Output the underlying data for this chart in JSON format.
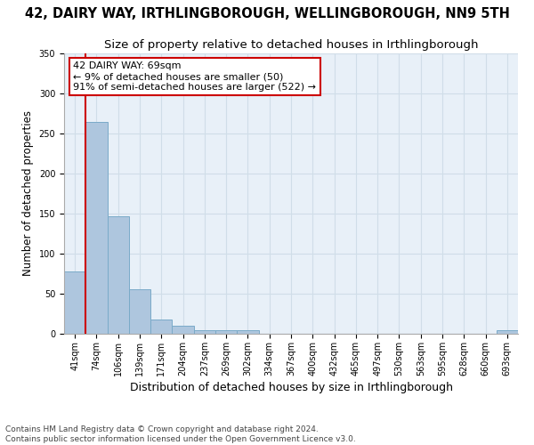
{
  "title": "42, DAIRY WAY, IRTHLINGBOROUGH, WELLINGBOROUGH, NN9 5TH",
  "subtitle": "Size of property relative to detached houses in Irthlingborough",
  "xlabel": "Distribution of detached houses by size in Irthlingborough",
  "ylabel": "Number of detached properties",
  "footer_line1": "Contains HM Land Registry data © Crown copyright and database right 2024.",
  "footer_line2": "Contains public sector information licensed under the Open Government Licence v3.0.",
  "bins": [
    "41sqm",
    "74sqm",
    "106sqm",
    "139sqm",
    "171sqm",
    "204sqm",
    "237sqm",
    "269sqm",
    "302sqm",
    "334sqm",
    "367sqm",
    "400sqm",
    "432sqm",
    "465sqm",
    "497sqm",
    "530sqm",
    "563sqm",
    "595sqm",
    "628sqm",
    "660sqm",
    "693sqm"
  ],
  "values": [
    78,
    265,
    147,
    56,
    18,
    10,
    4,
    4,
    4,
    0,
    0,
    0,
    0,
    0,
    0,
    0,
    0,
    0,
    0,
    0,
    4
  ],
  "bar_color": "#aec6de",
  "bar_edge_color": "#7aaac8",
  "grid_color": "#d0dde8",
  "background_color": "#e8f0f8",
  "annotation_text": "42 DAIRY WAY: 69sqm\n← 9% of detached houses are smaller (50)\n91% of semi-detached houses are larger (522) →",
  "annotation_box_color": "#ffffff",
  "annotation_border_color": "#cc0000",
  "property_line_color": "#cc0000",
  "property_line_x": 1,
  "ylim": [
    0,
    350
  ],
  "yticks": [
    0,
    50,
    100,
    150,
    200,
    250,
    300,
    350
  ],
  "title_fontsize": 10.5,
  "subtitle_fontsize": 9.5,
  "axis_label_fontsize": 8.5,
  "tick_fontsize": 7,
  "annotation_fontsize": 8,
  "footer_fontsize": 6.5
}
